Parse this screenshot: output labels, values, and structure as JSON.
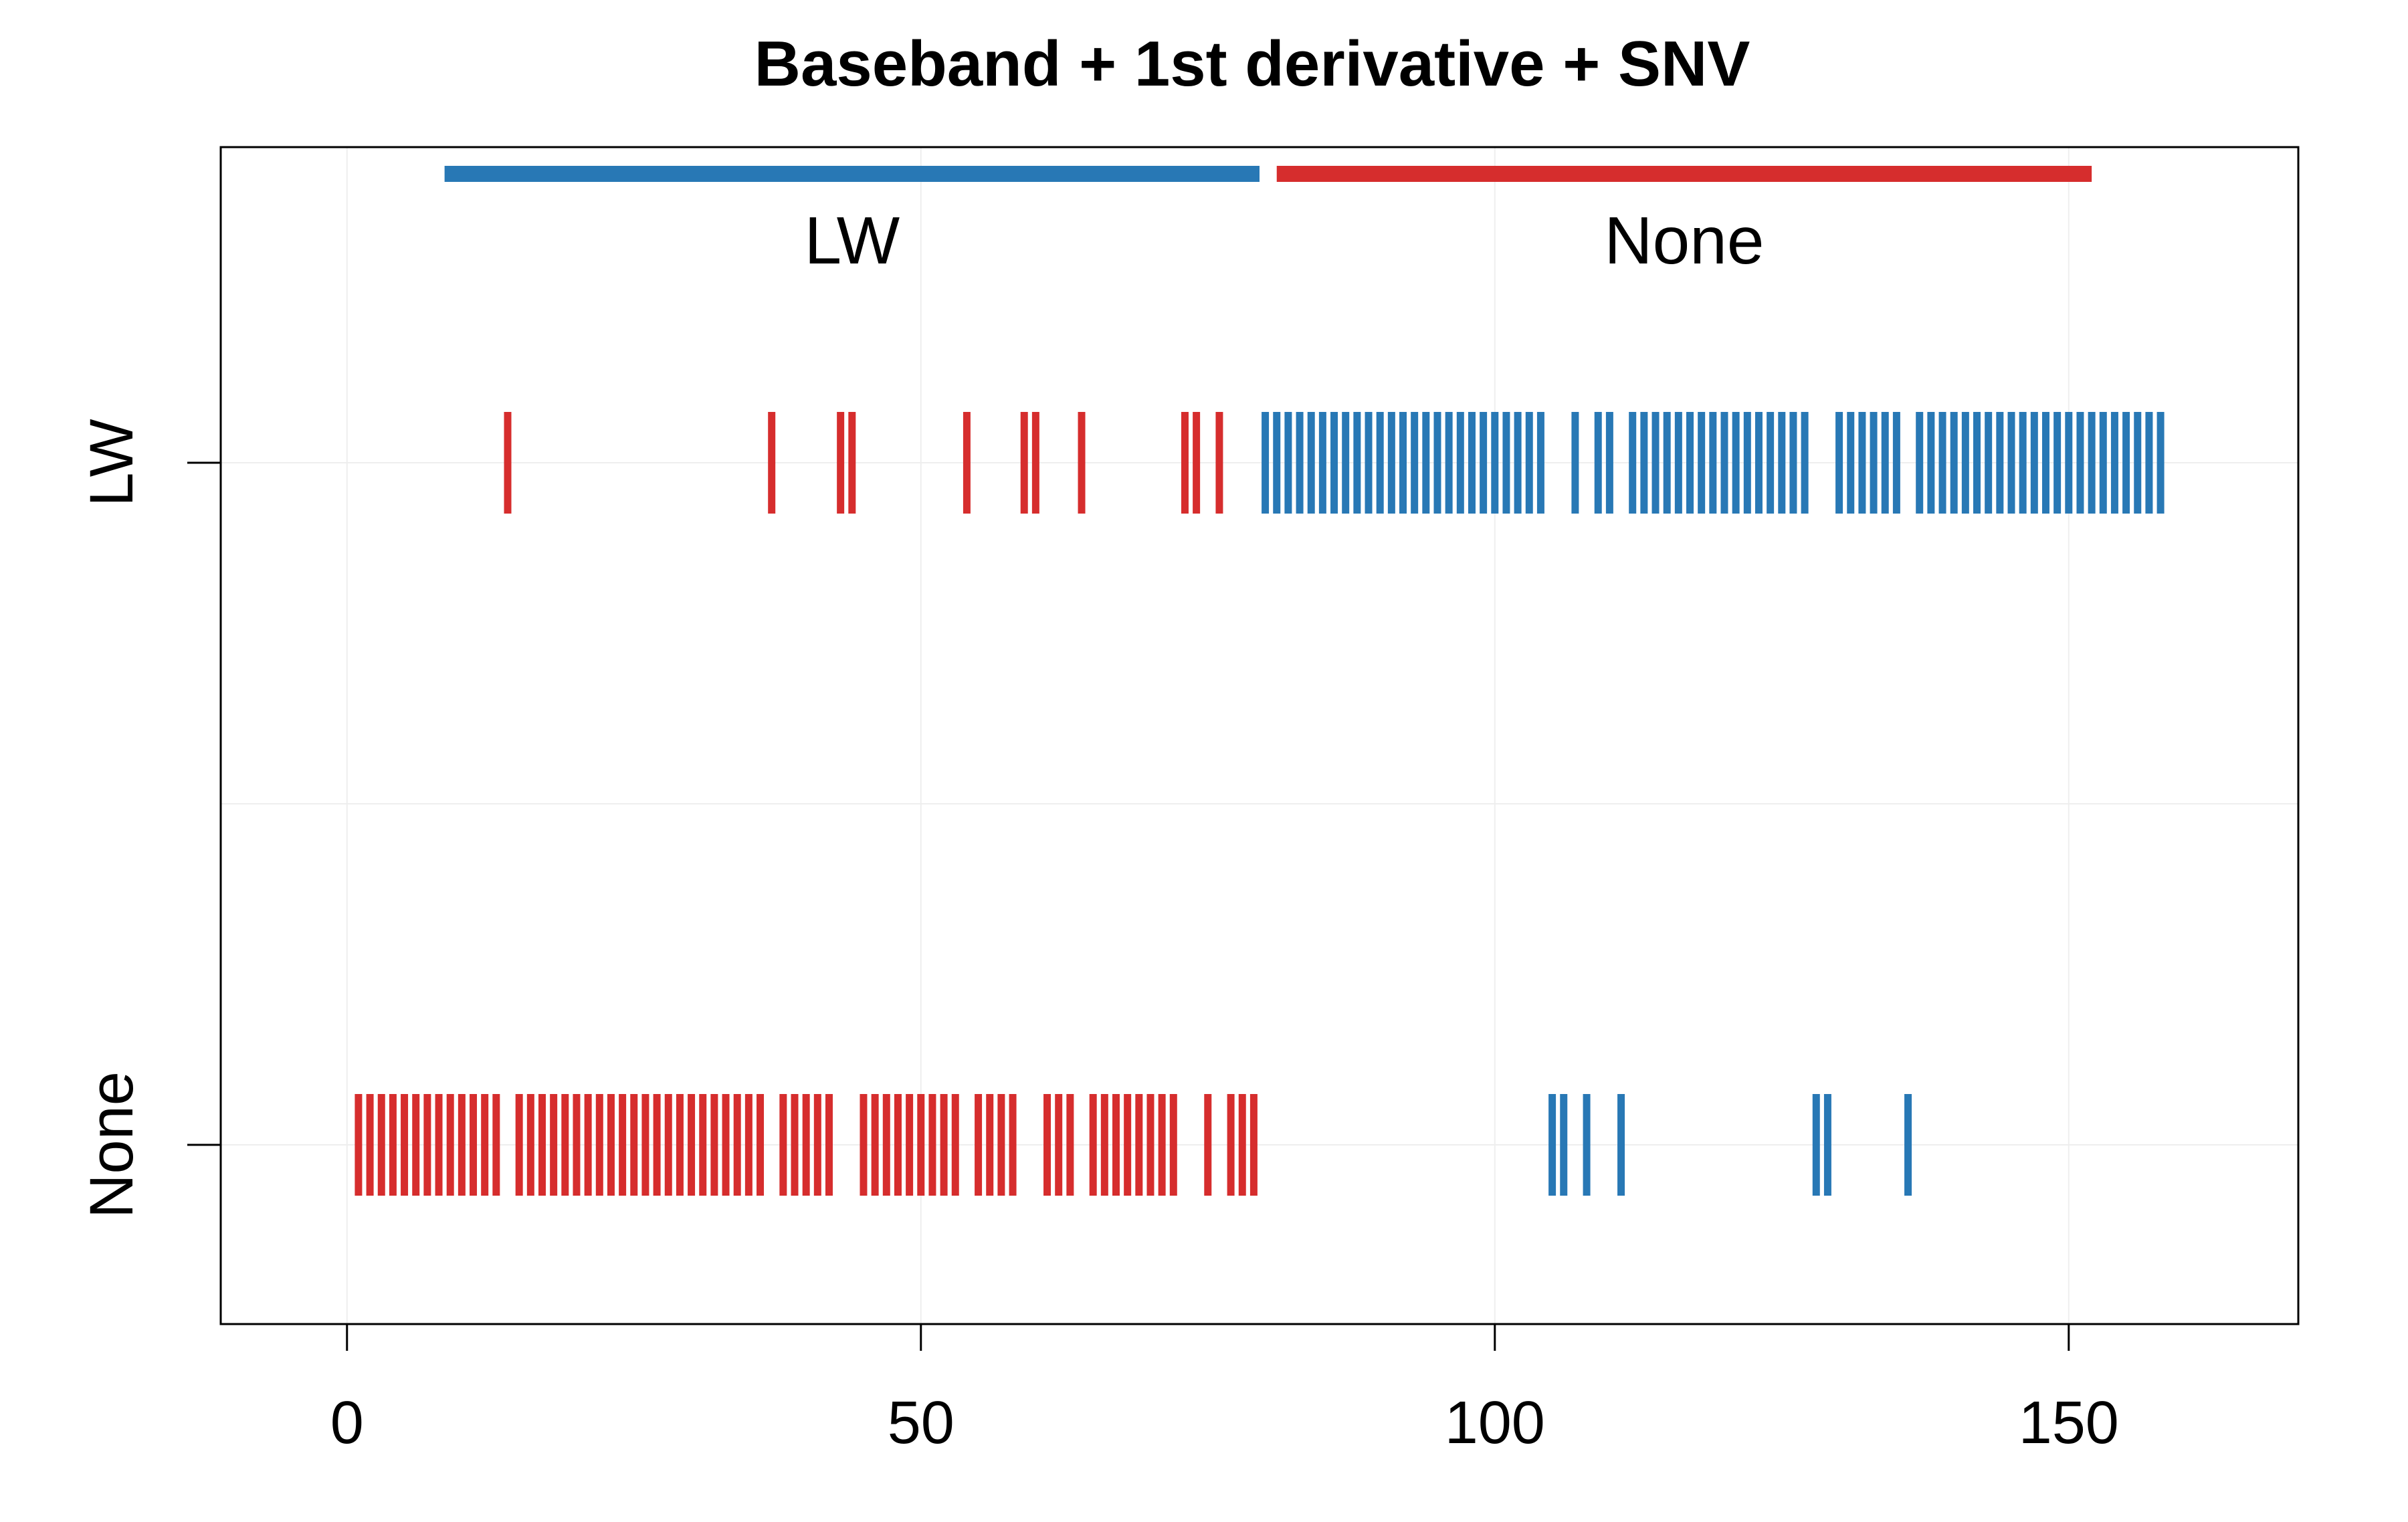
{
  "chart_data": {
    "type": "strip",
    "title": "Baseband + 1st derivative + SNV",
    "xlabel": "",
    "ylabel": "",
    "xlim": [
      -11,
      170
    ],
    "x_ticks": [
      0,
      50,
      100,
      150
    ],
    "y_categories": [
      "None",
      "LW"
    ],
    "grid": true,
    "colors": {
      "LW": "#2878B5",
      "None": "#D62D2D"
    },
    "groups": [
      {
        "label": "LW",
        "color": "#2878B5",
        "range": [
          8.5,
          79.5
        ]
      },
      {
        "label": "None",
        "color": "#D62D2D",
        "range": [
          81,
          152
        ]
      }
    ],
    "series": [
      {
        "row": "LW",
        "color": "#D62D2D",
        "x": [
          14,
          37,
          43,
          44,
          54,
          59,
          60,
          64,
          73,
          74,
          76
        ]
      },
      {
        "row": "LW",
        "color": "#2878B5",
        "x": [
          80,
          81,
          82,
          83,
          84,
          85,
          86,
          87,
          88,
          89,
          90,
          91,
          92,
          93,
          94,
          95,
          96,
          97,
          98,
          99,
          100,
          101,
          102,
          103,
          104,
          107,
          109,
          110,
          112,
          113,
          114,
          115,
          116,
          117,
          118,
          119,
          120,
          121,
          122,
          123,
          124,
          125,
          126,
          127,
          130,
          131,
          132,
          133,
          134,
          135,
          137,
          138,
          139,
          140,
          141,
          142,
          143,
          144,
          145,
          146,
          147,
          148,
          149,
          150,
          151,
          152,
          153,
          154,
          155,
          156,
          157,
          158
        ]
      },
      {
        "row": "None",
        "color": "#D62D2D",
        "x": [
          1,
          2,
          3,
          4,
          5,
          6,
          7,
          8,
          9,
          10,
          11,
          12,
          13,
          15,
          16,
          17,
          18,
          19,
          20,
          21,
          22,
          23,
          24,
          25,
          26,
          27,
          28,
          29,
          30,
          31,
          32,
          33,
          34,
          35,
          36,
          38,
          39,
          40,
          41,
          42,
          45,
          46,
          47,
          48,
          49,
          50,
          51,
          52,
          53,
          55,
          56,
          57,
          58,
          61,
          62,
          63,
          65,
          66,
          67,
          68,
          69,
          70,
          71,
          72,
          75,
          77,
          78,
          79
        ]
      },
      {
        "row": "None",
        "color": "#2878B5",
        "x": [
          105,
          106,
          108,
          111,
          128,
          129,
          136
        ]
      }
    ]
  }
}
